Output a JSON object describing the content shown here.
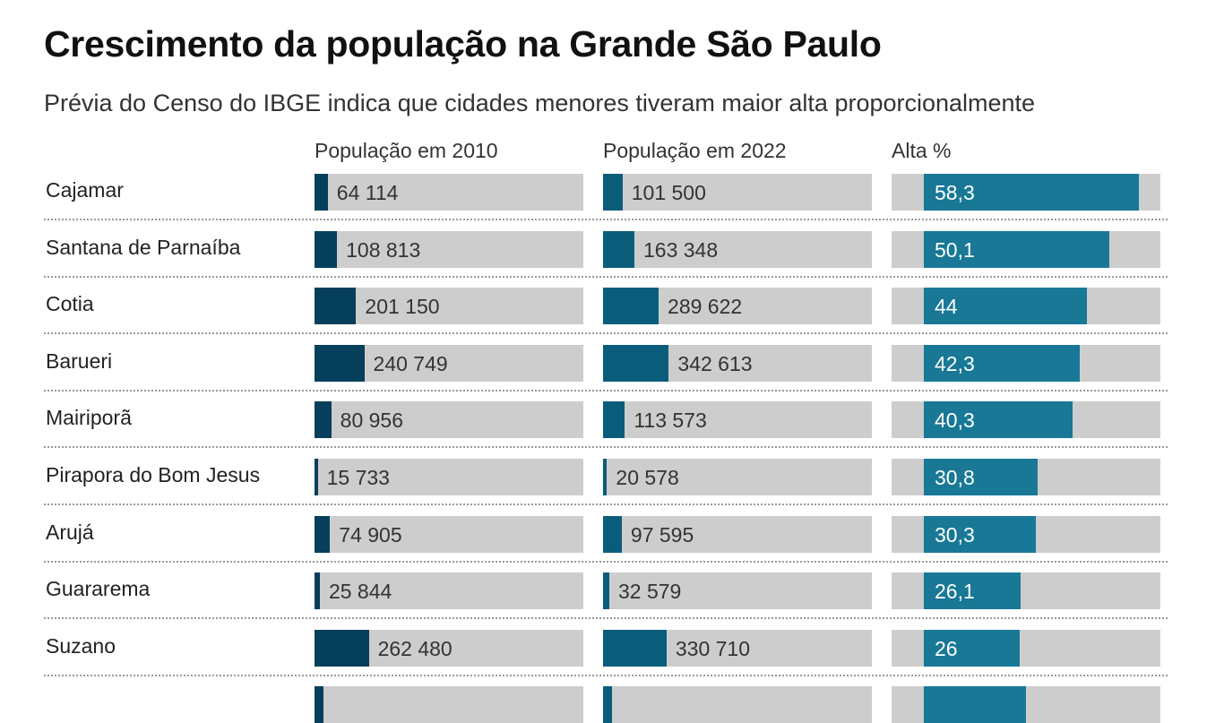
{
  "title": "Crescimento da população na Grande São Paulo",
  "subtitle": "Prévia do Censo do IBGE indica que cidades menores tiveram maior alta proporcionalmente",
  "colors": {
    "pop2010": "#063f5b",
    "pop2022": "#0a5d7a",
    "pct": "#187896",
    "track": "#cdcdcd"
  },
  "chart_data": {
    "type": "bar",
    "columns": [
      "População em 2010",
      "População em 2022",
      "Alta %"
    ],
    "categories": [
      "Cajamar",
      "Santana de Parnaíba",
      "Cotia",
      "Barueri",
      "Mairiporã",
      "Pirapora do Bom Jesus",
      "Arujá",
      "Guararema",
      "Suzano"
    ],
    "series": [
      {
        "name": "População em 2010",
        "values": [
          64114,
          108813,
          201150,
          240749,
          80956,
          15733,
          74905,
          25844,
          262480
        ],
        "labels": [
          "64 114",
          "108 813",
          "201 150",
          "240 749",
          "80 956",
          "15 733",
          "74 905",
          "25 844",
          "262 480"
        ]
      },
      {
        "name": "População em 2022",
        "values": [
          101500,
          163348,
          289622,
          342613,
          113573,
          20578,
          97595,
          32579,
          330710
        ],
        "labels": [
          "101 500",
          "163 348",
          "289 622",
          "342 613",
          "113 573",
          "20 578",
          "97 595",
          "32 579",
          "330 710"
        ]
      },
      {
        "name": "Alta %",
        "values": [
          58.3,
          50.1,
          44,
          42.3,
          40.3,
          30.8,
          30.3,
          26.1,
          26
        ],
        "labels": [
          "58,3",
          "50,1",
          "44",
          "42,3",
          "40,3",
          "30,8",
          "30,3",
          "26,1",
          "26"
        ]
      }
    ]
  }
}
